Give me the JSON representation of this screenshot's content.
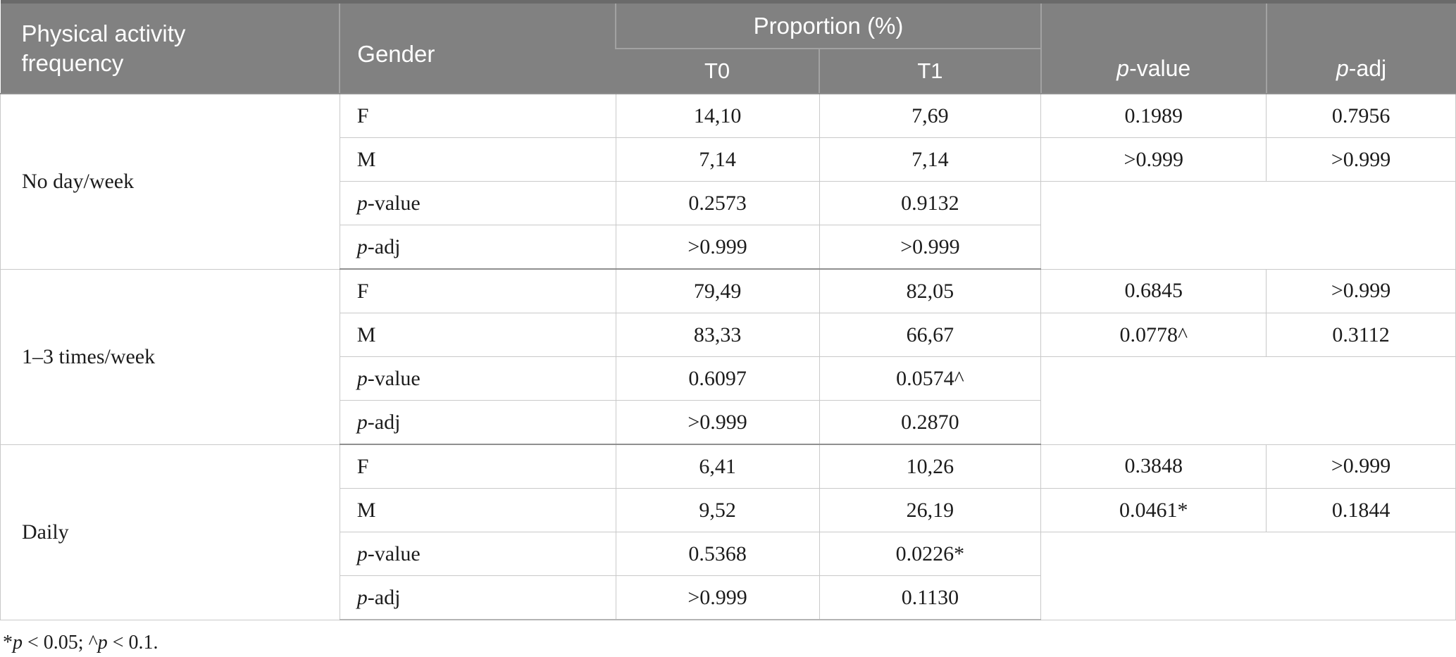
{
  "colors": {
    "header_bg": "#818181",
    "header_line": "#a2a2a2",
    "header_top": "#6a6a6a",
    "header_text": "#ffffff",
    "body_line": "#c9c9c9",
    "group_line": "#8f8f8f",
    "bottom_line": "#b4b4b4",
    "body_text": "#1c1c1c",
    "page_bg": "#ffffff"
  },
  "table": {
    "header": {
      "activity": "Physical activity frequency",
      "gender": "Gender",
      "proportion": "Proportion (%)",
      "t0": "T0",
      "t1": "T1"
    },
    "p_label": {
      "p": "p",
      "value_suffix": "-value",
      "adj_suffix": "-adj"
    },
    "groups": [
      {
        "label": "No day/week",
        "rows": [
          {
            "gender": "F",
            "t0": "14,10",
            "t1": "7,69",
            "p": "0.1989",
            "padj": "0.7956"
          },
          {
            "gender": "M",
            "t0": "7,14",
            "t1": "7,14",
            "p": ">0.999",
            "padj": ">0.999"
          },
          {
            "label": "p-value",
            "t0": "0.2573",
            "t1": "0.9132"
          },
          {
            "label": "p-adj",
            "t0": ">0.999",
            "t1": ">0.999"
          }
        ]
      },
      {
        "label": "1–3 times/week",
        "rows": [
          {
            "gender": "F",
            "t0": "79,49",
            "t1": "82,05",
            "p": "0.6845",
            "padj": ">0.999"
          },
          {
            "gender": "M",
            "t0": "83,33",
            "t1": "66,67",
            "p": "0.0778^",
            "padj": "0.3112"
          },
          {
            "label": "p-value",
            "t0": "0.6097",
            "t1": "0.0574^"
          },
          {
            "label": "p-adj",
            "t0": ">0.999",
            "t1": "0.2870"
          }
        ]
      },
      {
        "label": "Daily",
        "rows": [
          {
            "gender": "F",
            "t0": "6,41",
            "t1": "10,26",
            "p": "0.3848",
            "padj": ">0.999"
          },
          {
            "gender": "M",
            "t0": "9,52",
            "t1": "26,19",
            "p": "0.0461*",
            "padj": "0.1844"
          },
          {
            "label": "p-value",
            "t0": "0.5368",
            "t1": "0.0226*"
          },
          {
            "label": "p-adj",
            "t0": ">0.999",
            "t1": "0.1130"
          }
        ]
      }
    ]
  },
  "footnote": {
    "star": "*",
    "p": "p",
    "seg1": " < 0.05; ^",
    "seg2": " < 0.1."
  }
}
